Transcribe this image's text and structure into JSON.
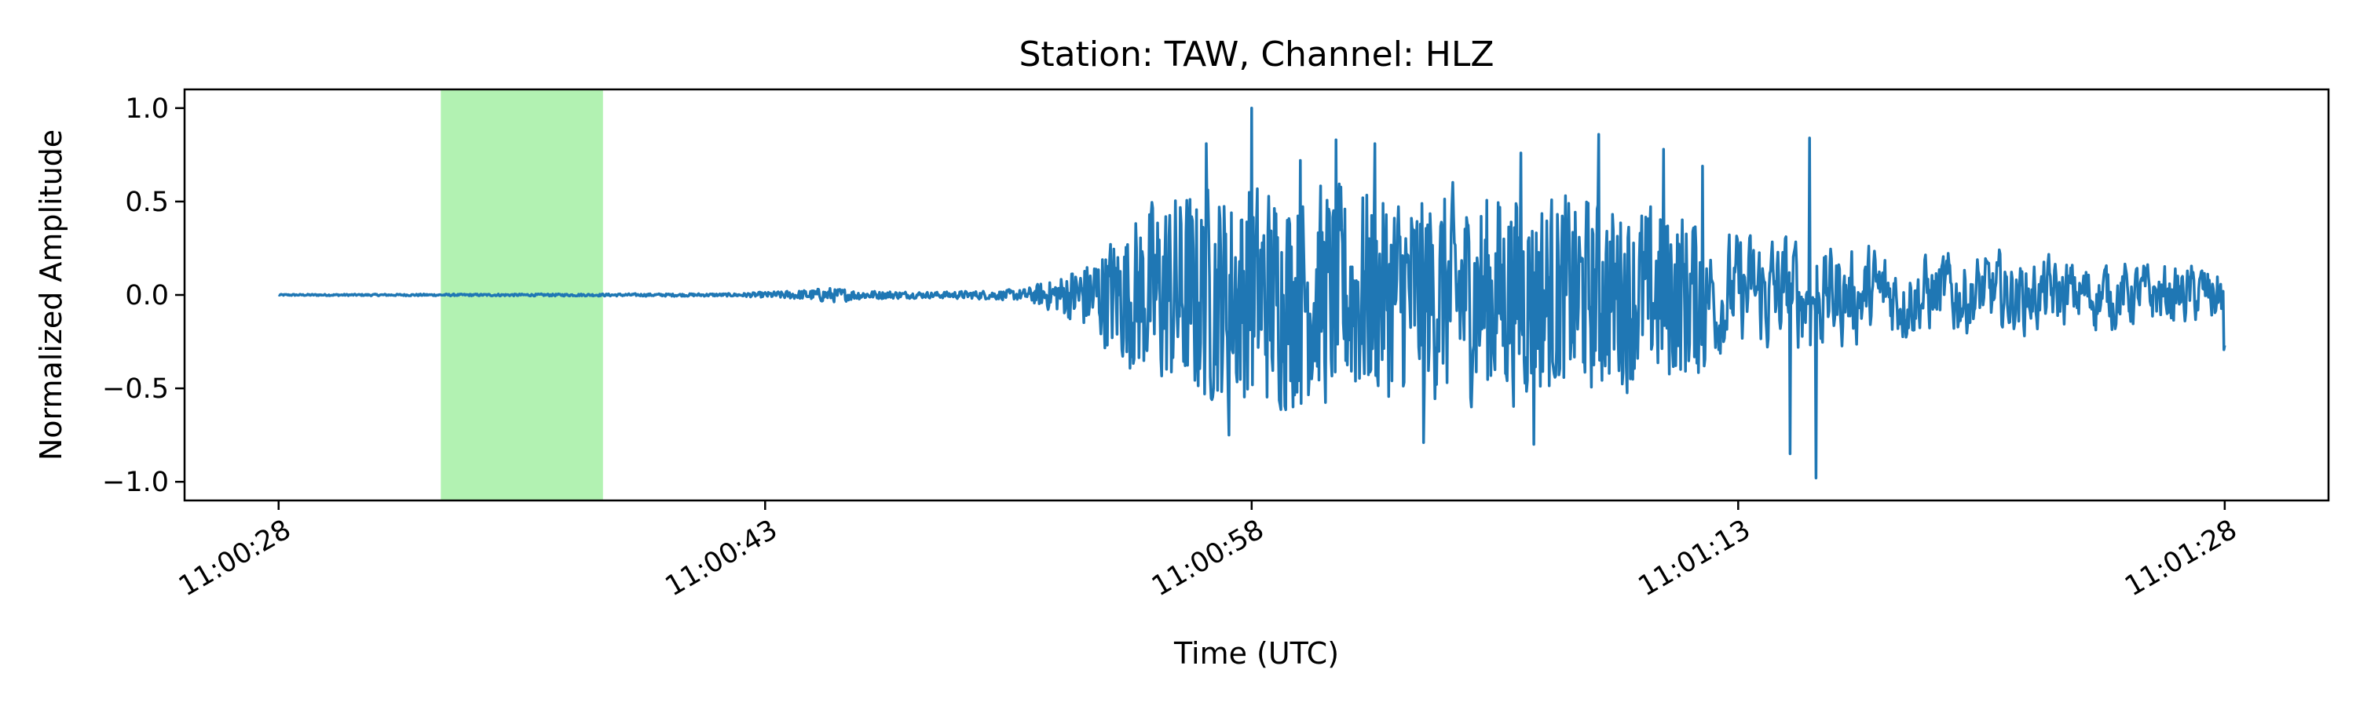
{
  "chart_data": {
    "type": "line",
    "title": "Station: TAW, Channel: HLZ",
    "xlabel": "Time (UTC)",
    "ylabel": "Normalized Amplitude",
    "x_range_seconds": [
      -2.9,
      63.2
    ],
    "ylim": [
      -1.1,
      1.1
    ],
    "x_ticks": [
      {
        "t": 0,
        "label": "11:00:28"
      },
      {
        "t": 15,
        "label": "11:00:43"
      },
      {
        "t": 30,
        "label": "11:00:58"
      },
      {
        "t": 45,
        "label": "11:01:13"
      },
      {
        "t": 60,
        "label": "11:01:28"
      }
    ],
    "y_ticks": [
      {
        "v": 1.0,
        "label": "1.0"
      },
      {
        "v": 0.5,
        "label": "0.5"
      },
      {
        "v": 0.0,
        "label": "0.0"
      },
      {
        "v": -0.5,
        "label": "−0.5"
      },
      {
        "v": -1.0,
        "label": "−1.0"
      }
    ],
    "highlight_window": {
      "t_start": 5.0,
      "t_end": 10.0,
      "color": "#b2f2b2"
    },
    "grid": false,
    "series": [
      {
        "color": "#1f77b4",
        "t_start": 0,
        "t_end": 60,
        "envelope": [
          [
            0,
            0.005
          ],
          [
            10,
            0.008
          ],
          [
            14,
            0.01
          ],
          [
            15,
            0.02
          ],
          [
            16,
            0.03
          ],
          [
            17,
            0.05
          ],
          [
            18,
            0.03
          ],
          [
            20,
            0.02
          ],
          [
            22,
            0.03
          ],
          [
            23,
            0.04
          ],
          [
            24,
            0.12
          ],
          [
            25,
            0.25
          ],
          [
            26,
            0.45
          ],
          [
            27,
            0.65
          ],
          [
            28,
            0.7
          ],
          [
            30,
            0.75
          ],
          [
            33,
            0.72
          ],
          [
            35,
            0.7
          ],
          [
            38,
            0.7
          ],
          [
            40,
            0.65
          ],
          [
            42,
            0.6
          ],
          [
            44,
            0.55
          ],
          [
            46,
            0.6
          ],
          [
            48,
            0.5
          ],
          [
            50,
            0.42
          ],
          [
            53,
            0.38
          ],
          [
            56,
            0.33
          ],
          [
            58,
            0.3
          ],
          [
            60,
            0.3
          ]
        ],
        "peaks": [
          {
            "t": 30.0,
            "v": 1.0
          },
          {
            "t": 47.4,
            "v": -0.98
          },
          {
            "t": 47.2,
            "v": 0.84
          },
          {
            "t": 46.6,
            "v": -0.85
          },
          {
            "t": 32.6,
            "v": 0.83
          },
          {
            "t": 28.6,
            "v": 0.81
          },
          {
            "t": 33.8,
            "v": 0.81
          },
          {
            "t": 40.7,
            "v": 0.86
          },
          {
            "t": 38.3,
            "v": 0.76
          },
          {
            "t": 35.3,
            "v": -0.79
          },
          {
            "t": 38.7,
            "v": -0.8
          },
          {
            "t": 29.3,
            "v": -0.75
          },
          {
            "t": 31.5,
            "v": 0.72
          },
          {
            "t": 42.7,
            "v": 0.78
          },
          {
            "t": 43.9,
            "v": 0.69
          }
        ],
        "end_value": -0.27
      }
    ]
  }
}
